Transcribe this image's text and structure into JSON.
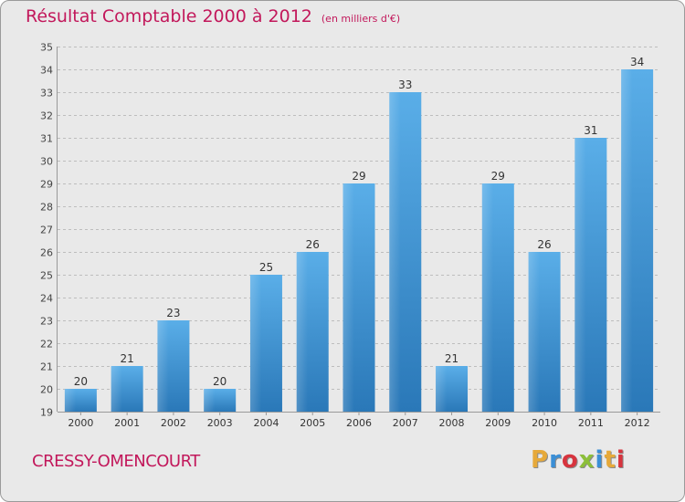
{
  "title": "Résultat Comptable 2000 à 2012",
  "subtitle": "(en milliers d'€)",
  "commune": "CRESSY-OMENCOURT",
  "logo": {
    "letters": [
      "P",
      "r",
      "o",
      "x",
      "i",
      "t",
      "i"
    ],
    "colors": [
      "#e6a93a",
      "#3b8fd6",
      "#d7343e",
      "#8cbf3a",
      "#3b8fd6",
      "#e6a93a",
      "#d7343e"
    ]
  },
  "colors": {
    "bar_light": "#5aaee8",
    "bar_dark": "#2a78b8",
    "title": "#c2185b",
    "background": "#e9e9e9"
  },
  "chart_data": {
    "type": "bar",
    "title": "Résultat Comptable 2000 à 2012",
    "subtitle": "(en milliers d'€)",
    "categories": [
      "2000",
      "2001",
      "2002",
      "2003",
      "2004",
      "2005",
      "2006",
      "2007",
      "2008",
      "2009",
      "2010",
      "2011",
      "2012"
    ],
    "values": [
      20,
      21,
      23,
      20,
      25,
      26,
      29,
      33,
      21,
      29,
      26,
      31,
      34
    ],
    "ylim": [
      19,
      35
    ],
    "yticks": [
      19,
      20,
      21,
      22,
      23,
      24,
      25,
      26,
      27,
      28,
      29,
      30,
      31,
      32,
      33,
      34,
      35
    ],
    "xlabel": "",
    "ylabel": "",
    "grid": true
  }
}
